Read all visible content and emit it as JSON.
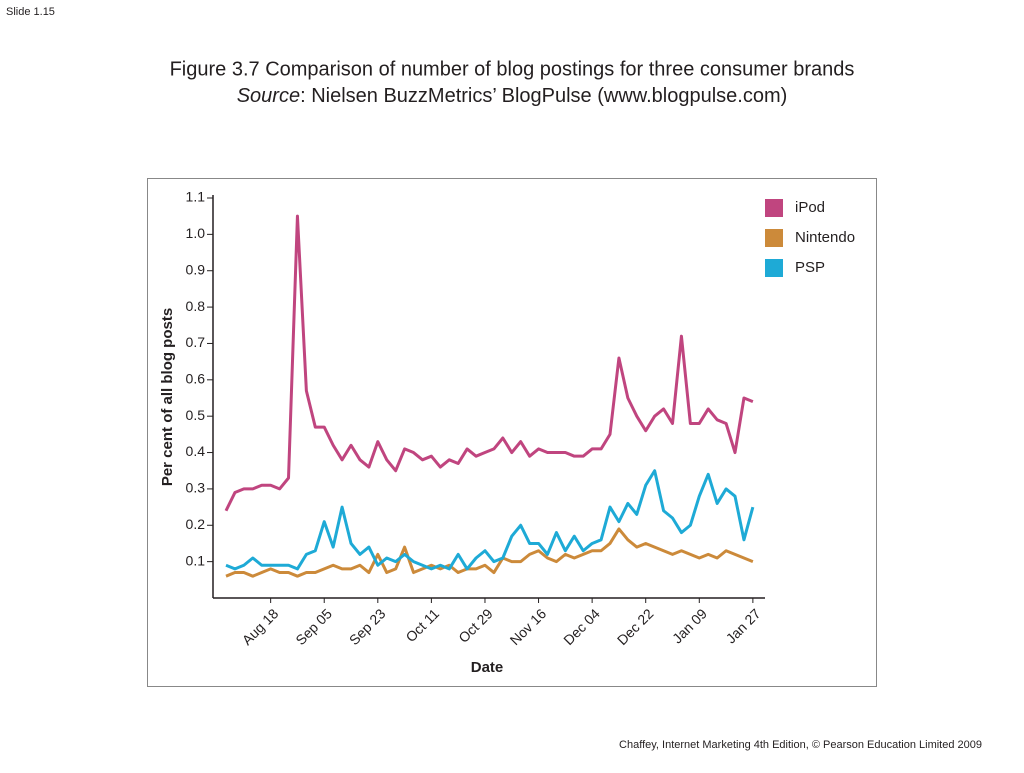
{
  "slide_number": "Slide 1.15",
  "figure_title": "Figure 3.7  Comparison of number of blog postings for three consumer brands",
  "source_label": "Source",
  "source_text": ": Nielsen BuzzMetrics’ BlogPulse (www.blogpulse.com)",
  "footer": "Chaffey, Internet Marketing 4th Edition, © Pearson Education Limited 2009",
  "chart_data": {
    "type": "line",
    "xlabel": "Date",
    "ylabel": "Per cent of all blog posts",
    "categories": [
      null,
      null,
      null,
      null,
      null,
      "Aug 18",
      null,
      null,
      null,
      null,
      null,
      "Sep 05",
      null,
      null,
      null,
      null,
      null,
      "Sep 23",
      null,
      null,
      null,
      null,
      null,
      "Oct 11",
      null,
      null,
      null,
      null,
      null,
      "Oct 29",
      null,
      null,
      null,
      null,
      null,
      "Nov 16",
      null,
      null,
      null,
      null,
      null,
      "Dec 04",
      null,
      null,
      null,
      null,
      null,
      "Dec 22",
      null,
      null,
      null,
      null,
      null,
      "Jan 09",
      null,
      null,
      null,
      null,
      null,
      "Jan 27"
    ],
    "series": [
      {
        "name": "iPod",
        "color": "#c0457f",
        "values": [
          0.24,
          0.29,
          0.3,
          0.3,
          0.31,
          0.31,
          0.3,
          0.33,
          1.05,
          0.57,
          0.47,
          0.47,
          0.42,
          0.38,
          0.42,
          0.38,
          0.36,
          0.43,
          0.38,
          0.35,
          0.41,
          0.4,
          0.38,
          0.39,
          0.36,
          0.38,
          0.37,
          0.41,
          0.39,
          0.4,
          0.41,
          0.44,
          0.4,
          0.43,
          0.39,
          0.41,
          0.4,
          0.4,
          0.4,
          0.39,
          0.39,
          0.41,
          0.41,
          0.45,
          0.66,
          0.55,
          0.5,
          0.46,
          0.5,
          0.52,
          0.48,
          0.72,
          0.48,
          0.48,
          0.52,
          0.49,
          0.48,
          0.4,
          0.55,
          0.54
        ]
      },
      {
        "name": "Nintendo",
        "color": "#cc8a3a",
        "values": [
          0.06,
          0.07,
          0.07,
          0.06,
          0.07,
          0.08,
          0.07,
          0.07,
          0.06,
          0.07,
          0.07,
          0.08,
          0.09,
          0.08,
          0.08,
          0.09,
          0.07,
          0.12,
          0.07,
          0.08,
          0.14,
          0.07,
          0.08,
          0.09,
          0.08,
          0.09,
          0.07,
          0.08,
          0.08,
          0.09,
          0.07,
          0.11,
          0.1,
          0.1,
          0.12,
          0.13,
          0.11,
          0.1,
          0.12,
          0.11,
          0.12,
          0.13,
          0.13,
          0.15,
          0.19,
          0.16,
          0.14,
          0.15,
          0.14,
          0.13,
          0.12,
          0.13,
          0.12,
          0.11,
          0.12,
          0.11,
          0.13,
          0.12,
          0.11,
          0.1
        ]
      },
      {
        "name": "PSP",
        "color": "#1eaad6",
        "values": [
          0.09,
          0.08,
          0.09,
          0.11,
          0.09,
          0.09,
          0.09,
          0.09,
          0.08,
          0.12,
          0.13,
          0.21,
          0.14,
          0.25,
          0.15,
          0.12,
          0.14,
          0.09,
          0.11,
          0.1,
          0.12,
          0.1,
          0.09,
          0.08,
          0.09,
          0.08,
          0.12,
          0.08,
          0.11,
          0.13,
          0.1,
          0.11,
          0.17,
          0.2,
          0.15,
          0.15,
          0.12,
          0.18,
          0.13,
          0.17,
          0.13,
          0.15,
          0.16,
          0.25,
          0.21,
          0.26,
          0.23,
          0.31,
          0.35,
          0.24,
          0.22,
          0.18,
          0.2,
          0.28,
          0.34,
          0.26,
          0.3,
          0.28,
          0.16,
          0.25
        ]
      }
    ],
    "ylim": [
      0,
      1.1
    ],
    "yticks": [
      0.1,
      0.2,
      0.3,
      0.4,
      0.5,
      0.6,
      0.7,
      0.8,
      0.9,
      {
        "value": 1,
        "label": "1.0"
      },
      1.1
    ],
    "legend": "upper right"
  }
}
